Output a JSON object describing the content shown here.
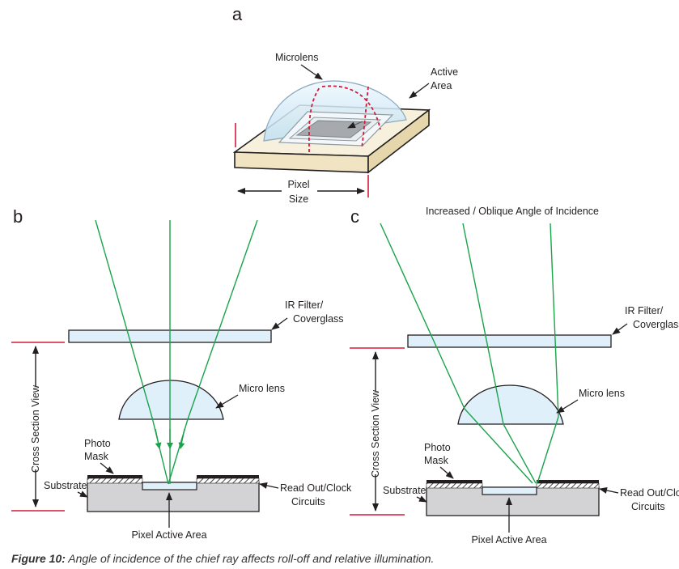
{
  "panels": {
    "a": {
      "letter": "a",
      "microlens": "Microlens",
      "active_area_line1": "Active",
      "active_area_line2": "Area",
      "pixel_size_line1": "Pixel",
      "pixel_size_line2": "Size"
    },
    "b": {
      "letter": "b",
      "ir_filter_line1": "IR Filter/",
      "ir_filter_line2": "Coverglass",
      "micro_lens": "Micro lens",
      "photo_mask_line1": "Photo",
      "photo_mask_line2": "Mask",
      "substrate": "Substrate",
      "readout_line1": "Read Out/Clock",
      "readout_line2": "Circuits",
      "pixel_active_area": "Pixel Active Area",
      "cross_section": "Cross Section View"
    },
    "c": {
      "letter": "c",
      "title": "Increased / Oblique Angle of Incidence",
      "ir_filter_line1": "IR Filter/",
      "ir_filter_line2": "Coverglass",
      "micro_lens": "Micro lens",
      "photo_mask_line1": "Photo",
      "photo_mask_line2": "Mask",
      "substrate": "Substrate",
      "readout_line1": "Read Out/Clock",
      "readout_line2": "Circuits",
      "pixel_active_area": "Pixel Active Area",
      "cross_section": "Cross Section View"
    }
  },
  "caption": {
    "label": "Figure 10:",
    "text": " Angle of incidence of the chief ray affects roll-off and relative illumination."
  },
  "colors": {
    "ray": "#1aa34a",
    "red": "#d7193a",
    "glass": "#dff0fb",
    "outline": "#231f20",
    "substrate": "#d3d3d5",
    "chip": "#f7f0dc"
  }
}
